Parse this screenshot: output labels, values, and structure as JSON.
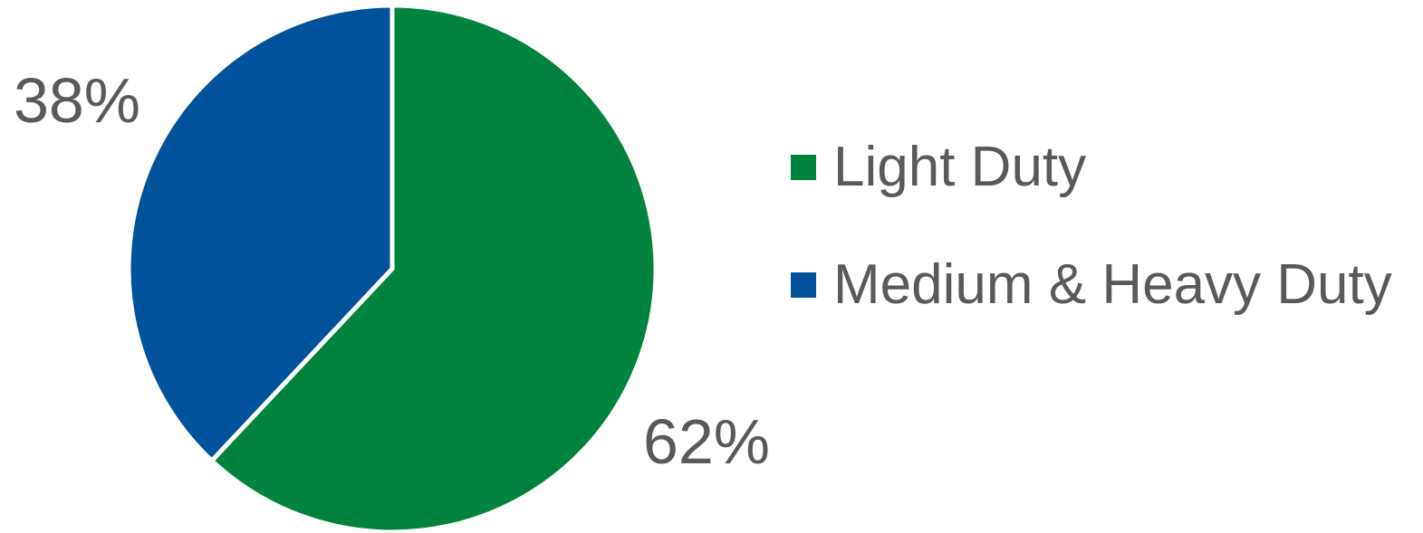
{
  "chart_data": {
    "type": "pie",
    "title": "",
    "categories": [
      "Light Duty",
      "Medium & Heavy Duty"
    ],
    "values": [
      62,
      38
    ],
    "value_labels": [
      "62%",
      "38%"
    ],
    "colors": [
      "#00843D",
      "#00529B"
    ],
    "legend_position": "right",
    "start_angle": "12 o'clock",
    "direction": "clockwise"
  },
  "legend": {
    "items": [
      {
        "label": "Light Duty",
        "color": "#00843D"
      },
      {
        "label": "Medium & Heavy Duty",
        "color": "#00529B"
      }
    ]
  }
}
